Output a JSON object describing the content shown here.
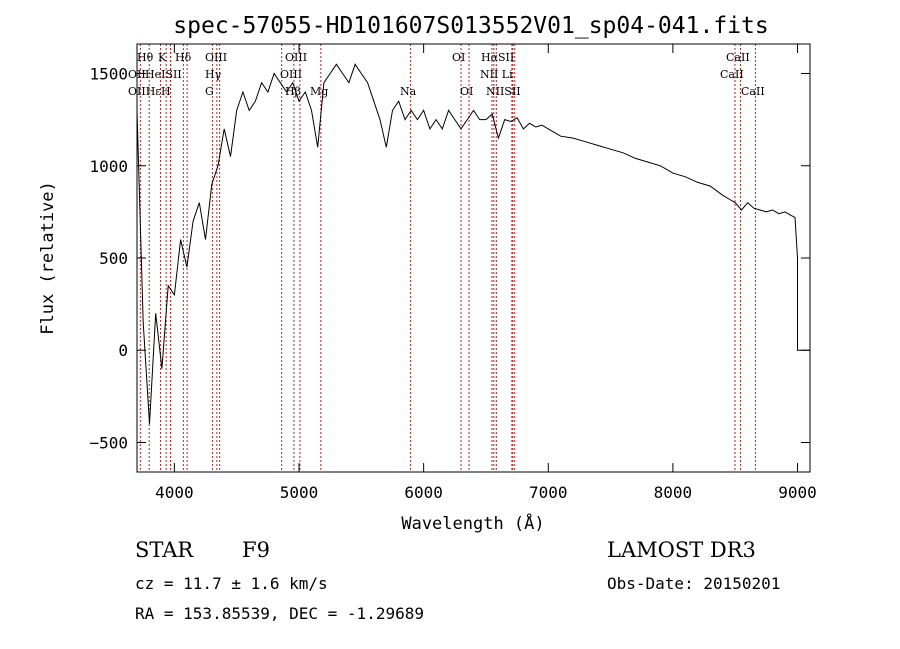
{
  "chart_data": {
    "type": "line",
    "title": "spec-57055-HD101607S013552V01_sp04-041.fits",
    "xlabel": "Wavelength (Å)",
    "ylabel": "Flux (relative)",
    "xlim": [
      3700,
      9100
    ],
    "ylim": [
      -660,
      1660
    ],
    "xticks": [
      4000,
      5000,
      6000,
      7000,
      8000,
      9000
    ],
    "yticks": [
      -500,
      0,
      500,
      1000,
      1500
    ],
    "series": [
      {
        "name": "flux",
        "x": [
          3700,
          3750,
          3800,
          3850,
          3900,
          3950,
          4000,
          4050,
          4100,
          4150,
          4200,
          4250,
          4300,
          4350,
          4400,
          4450,
          4500,
          4550,
          4600,
          4650,
          4700,
          4750,
          4800,
          4850,
          4900,
          4950,
          5000,
          5050,
          5100,
          5150,
          5200,
          5250,
          5300,
          5350,
          5400,
          5450,
          5500,
          5550,
          5600,
          5650,
          5700,
          5750,
          5800,
          5850,
          5900,
          5950,
          6000,
          6050,
          6100,
          6150,
          6200,
          6250,
          6300,
          6350,
          6400,
          6450,
          6500,
          6550,
          6600,
          6650,
          6700,
          6750,
          6800,
          6850,
          6900,
          6950,
          7000,
          7100,
          7200,
          7300,
          7400,
          7500,
          7600,
          7700,
          7800,
          7900,
          8000,
          8100,
          8200,
          8300,
          8400,
          8450,
          8500,
          8550,
          8600,
          8650,
          8700,
          8750,
          8800,
          8850,
          8900,
          8950,
          8980,
          9000
        ],
        "y": [
          1300,
          150,
          -400,
          200,
          -100,
          350,
          300,
          600,
          450,
          700,
          800,
          600,
          900,
          1000,
          1200,
          1050,
          1300,
          1400,
          1300,
          1350,
          1450,
          1400,
          1500,
          1450,
          1400,
          1450,
          1350,
          1400,
          1300,
          1100,
          1450,
          1500,
          1550,
          1500,
          1450,
          1550,
          1500,
          1450,
          1350,
          1250,
          1100,
          1300,
          1350,
          1250,
          1300,
          1250,
          1300,
          1200,
          1250,
          1200,
          1300,
          1250,
          1200,
          1250,
          1300,
          1250,
          1250,
          1280,
          1150,
          1250,
          1240,
          1260,
          1200,
          1230,
          1210,
          1220,
          1200,
          1160,
          1150,
          1130,
          1110,
          1090,
          1070,
          1040,
          1020,
          1000,
          960,
          940,
          910,
          890,
          840,
          820,
          800,
          760,
          800,
          770,
          760,
          750,
          760,
          740,
          750,
          730,
          720,
          500
        ]
      }
    ],
    "line_marks": [
      {
        "name": "Hθ",
        "wave": 3798
      },
      {
        "name": "OII",
        "wave": 3727
      },
      {
        "name": "K",
        "wave": 3934
      },
      {
        "name": "HeI",
        "wave": 3889
      },
      {
        "name": "H",
        "wave": 3969
      },
      {
        "name": "Hε",
        "wave": 3970
      },
      {
        "name": "Hδ",
        "wave": 4102
      },
      {
        "name": "SII",
        "wave": 4072
      },
      {
        "name": "G",
        "wave": 4305
      },
      {
        "name": "Hγ",
        "wave": 4341
      },
      {
        "name": "OIII",
        "wave": 4363
      },
      {
        "name": "Hβ",
        "wave": 4861
      },
      {
        "name": "OIII",
        "wave": 4959
      },
      {
        "name": "OIII",
        "wave": 5007
      },
      {
        "name": "Mg",
        "wave": 5175
      },
      {
        "name": "Na",
        "wave": 5894
      },
      {
        "name": "OI",
        "wave": 6300
      },
      {
        "name": "OI",
        "wave": 6364
      },
      {
        "name": "NII",
        "wave": 6548
      },
      {
        "name": "Hα",
        "wave": 6563
      },
      {
        "name": "NII",
        "wave": 6583
      },
      {
        "name": "Li",
        "wave": 6708
      },
      {
        "name": "SII",
        "wave": 6716
      },
      {
        "name": "SII",
        "wave": 6731
      },
      {
        "name": "CaII",
        "wave": 8498
      },
      {
        "name": "CaII",
        "wave": 8542
      },
      {
        "name": "CaII",
        "wave": 8662
      }
    ],
    "line_label_rows": [
      [
        "Hθ",
        "K",
        "Hδ",
        "OIII",
        "OIII",
        "OI",
        "HαSII",
        "CaII"
      ],
      [
        "OII",
        "HeISII",
        "Hγ",
        "OIII",
        "NII Li",
        "CaII"
      ],
      [
        "OIIHεH",
        "G",
        "Hβ",
        "Mg",
        "Na",
        "OI",
        "NIISII",
        "CaII"
      ]
    ]
  },
  "info": {
    "object_class": "STAR",
    "subclass": "F9",
    "survey": "LAMOST DR3",
    "redshift": "cz = 11.7 ± 1.6 km/s",
    "obs_date": "Obs-Date: 20150201",
    "coords": "RA = 153.85539, DEC =  -1.29689"
  },
  "colors": {
    "line_marker": "#b22222",
    "spectrum": "#000000"
  }
}
